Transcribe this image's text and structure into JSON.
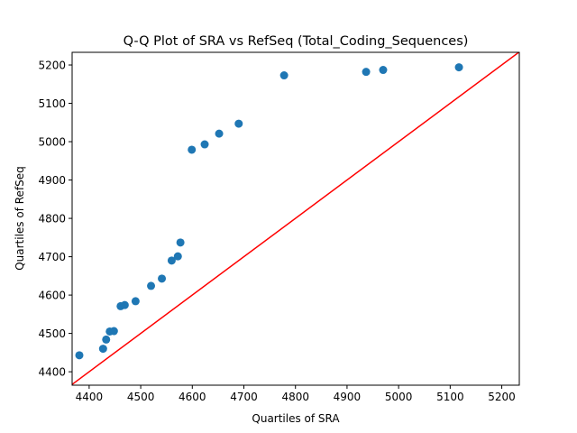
{
  "chart_data": {
    "type": "scatter",
    "title": "Q-Q Plot of SRA vs RefSeq (Total_Coding_Sequences)",
    "xlabel": "Quartiles of SRA",
    "ylabel": "Quartiles of RefSeq",
    "xlim": [
      4367,
      5234
    ],
    "ylim": [
      4365,
      5233
    ],
    "xticks": [
      4400,
      4500,
      4600,
      4700,
      4800,
      4900,
      5000,
      5100,
      5200
    ],
    "yticks": [
      4400,
      4500,
      4600,
      4700,
      4800,
      4900,
      5000,
      5100,
      5200
    ],
    "grid": false,
    "point_color": "#1f77b4",
    "line_color": "#ff0000",
    "reference_line": "y = x",
    "points": [
      {
        "x": 4381,
        "y": 4443
      },
      {
        "x": 4427,
        "y": 4460
      },
      {
        "x": 4433,
        "y": 4484
      },
      {
        "x": 4440,
        "y": 4505
      },
      {
        "x": 4448,
        "y": 4506
      },
      {
        "x": 4461,
        "y": 4571
      },
      {
        "x": 4469,
        "y": 4574
      },
      {
        "x": 4490,
        "y": 4584
      },
      {
        "x": 4520,
        "y": 4624
      },
      {
        "x": 4541,
        "y": 4643
      },
      {
        "x": 4560,
        "y": 4690
      },
      {
        "x": 4572,
        "y": 4701
      },
      {
        "x": 4577,
        "y": 4737
      },
      {
        "x": 4599,
        "y": 4979
      },
      {
        "x": 4624,
        "y": 4993
      },
      {
        "x": 4652,
        "y": 5021
      },
      {
        "x": 4690,
        "y": 5047
      },
      {
        "x": 4778,
        "y": 5173
      },
      {
        "x": 4937,
        "y": 5182
      },
      {
        "x": 4970,
        "y": 5187
      },
      {
        "x": 5117,
        "y": 5194
      }
    ]
  }
}
